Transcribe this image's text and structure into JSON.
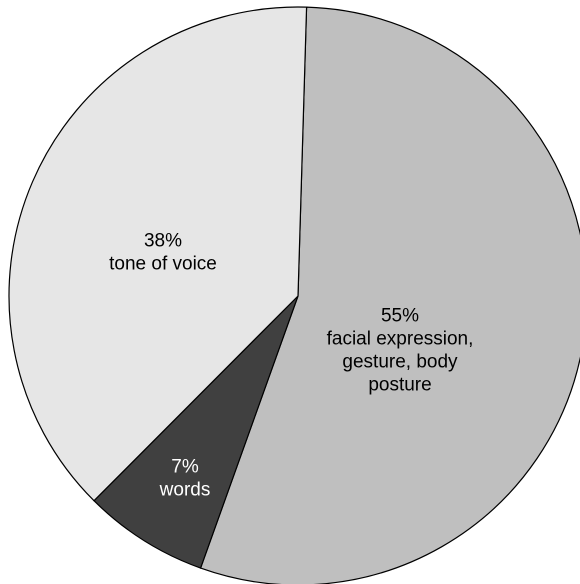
{
  "chart_data": {
    "type": "pie",
    "title": "",
    "slices": [
      {
        "value": 55,
        "percent_label": "55%",
        "label_lines": [
          "facial expression,",
          "gesture, body",
          "posture"
        ],
        "color": "#bfbfbf",
        "text_color": "#000000"
      },
      {
        "value": 7,
        "percent_label": "7%",
        "label_lines": [
          "words"
        ],
        "color": "#404040",
        "text_color": "#ffffff"
      },
      {
        "value": 38,
        "percent_label": "38%",
        "label_lines": [
          "tone of voice"
        ],
        "color": "#e6e6e6",
        "text_color": "#000000"
      }
    ]
  }
}
